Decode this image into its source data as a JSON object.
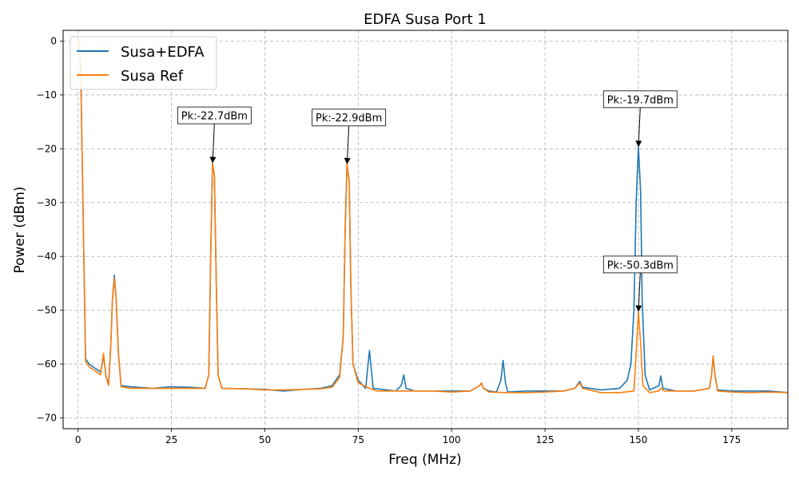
{
  "chart_data": {
    "type": "line",
    "title": "EDFA Susa Port 1",
    "xlabel": "Freq (MHz)",
    "ylabel": "Power (dBm)",
    "xlim": [
      -4,
      190
    ],
    "ylim": [
      -72,
      2
    ],
    "xticks": [
      0,
      25,
      50,
      75,
      100,
      125,
      150,
      175
    ],
    "yticks": [
      0,
      -10,
      -20,
      -30,
      -40,
      -50,
      -60,
      -70
    ],
    "xtick_labels": [
      "0",
      "25",
      "50",
      "75",
      "100",
      "125",
      "150",
      "175"
    ],
    "ytick_labels": [
      "0",
      "−10",
      "−20",
      "−30",
      "−40",
      "−50",
      "−60",
      "−70"
    ],
    "grid": true,
    "legend_position": "top-left",
    "series": [
      {
        "name": "Susa+EDFA",
        "color": "#1f77b4",
        "points": [
          [
            0,
            0.8
          ],
          [
            0.7,
            -5
          ],
          [
            1.3,
            -30
          ],
          [
            2,
            -59
          ],
          [
            3,
            -60
          ],
          [
            4,
            -60.5
          ],
          [
            5,
            -61
          ],
          [
            6,
            -61.5
          ],
          [
            6.8,
            -58.5
          ],
          [
            7.5,
            -62.5
          ],
          [
            8.2,
            -63.5
          ],
          [
            8.8,
            -56
          ],
          [
            9.2,
            -48
          ],
          [
            9.7,
            -43.5
          ],
          [
            10.2,
            -48
          ],
          [
            10.8,
            -58
          ],
          [
            11.5,
            -64
          ],
          [
            14,
            -64.2
          ],
          [
            20,
            -64.5
          ],
          [
            25,
            -64.2
          ],
          [
            30,
            -64.3
          ],
          [
            34,
            -64.5
          ],
          [
            35,
            -62
          ],
          [
            35.5,
            -40
          ],
          [
            36,
            -22.7
          ],
          [
            36.5,
            -25
          ],
          [
            37,
            -45
          ],
          [
            37.5,
            -62
          ],
          [
            38.5,
            -64.5
          ],
          [
            45,
            -64.6
          ],
          [
            50,
            -64.7
          ],
          [
            55,
            -65
          ],
          [
            60,
            -64.7
          ],
          [
            65,
            -64.5
          ],
          [
            68,
            -64
          ],
          [
            70,
            -62
          ],
          [
            71,
            -55
          ],
          [
            71.5,
            -35
          ],
          [
            72,
            -22.9
          ],
          [
            72.6,
            -26
          ],
          [
            73,
            -45
          ],
          [
            73.6,
            -60
          ],
          [
            75,
            -63
          ],
          [
            77,
            -64.5
          ],
          [
            77.5,
            -61
          ],
          [
            78,
            -57.5
          ],
          [
            78.5,
            -61
          ],
          [
            79,
            -64.5
          ],
          [
            85,
            -65
          ],
          [
            86.5,
            -64
          ],
          [
            87.2,
            -62
          ],
          [
            87.8,
            -64.5
          ],
          [
            90,
            -65
          ],
          [
            95,
            -65
          ],
          [
            100,
            -65
          ],
          [
            105,
            -65
          ],
          [
            107.5,
            -64
          ],
          [
            108,
            -63.5
          ],
          [
            108.5,
            -64.5
          ],
          [
            110,
            -65
          ],
          [
            112,
            -65.2
          ],
          [
            113.2,
            -63
          ],
          [
            113.8,
            -59.3
          ],
          [
            114.4,
            -63.5
          ],
          [
            115,
            -65.2
          ],
          [
            120,
            -65
          ],
          [
            125,
            -65
          ],
          [
            130,
            -65
          ],
          [
            133,
            -64.5
          ],
          [
            134.3,
            -63.2
          ],
          [
            135,
            -64.3
          ],
          [
            140,
            -64.8
          ],
          [
            145,
            -64.5
          ],
          [
            147,
            -63
          ],
          [
            148,
            -60
          ],
          [
            148.8,
            -50
          ],
          [
            149.4,
            -30
          ],
          [
            150,
            -19.7
          ],
          [
            150.6,
            -28
          ],
          [
            151,
            -48
          ],
          [
            151.8,
            -62
          ],
          [
            153,
            -64.8
          ],
          [
            155.5,
            -64
          ],
          [
            156,
            -62.2
          ],
          [
            156.6,
            -64.5
          ],
          [
            160,
            -65
          ],
          [
            165,
            -65
          ],
          [
            169,
            -64.5
          ],
          [
            169.6,
            -62
          ],
          [
            170,
            -58.5
          ],
          [
            170.5,
            -62
          ],
          [
            171.2,
            -64.8
          ],
          [
            175,
            -65
          ],
          [
            180,
            -65
          ],
          [
            185,
            -65
          ],
          [
            190,
            -65.3
          ]
        ]
      },
      {
        "name": "Susa Ref",
        "color": "#ff7f0e",
        "points": [
          [
            0,
            0.8
          ],
          [
            0.7,
            -5
          ],
          [
            1.3,
            -30
          ],
          [
            2,
            -59.5
          ],
          [
            3,
            -60.5
          ],
          [
            4,
            -61
          ],
          [
            5,
            -61.5
          ],
          [
            6,
            -62
          ],
          [
            6.8,
            -58
          ],
          [
            7.5,
            -62.5
          ],
          [
            8.2,
            -64
          ],
          [
            8.8,
            -56
          ],
          [
            9.2,
            -48
          ],
          [
            9.7,
            -44
          ],
          [
            10.2,
            -48
          ],
          [
            10.8,
            -58
          ],
          [
            11.5,
            -64.2
          ],
          [
            14,
            -64.5
          ],
          [
            20,
            -64.5
          ],
          [
            25,
            -64.5
          ],
          [
            30,
            -64.5
          ],
          [
            34,
            -64.5
          ],
          [
            35,
            -62
          ],
          [
            35.5,
            -40
          ],
          [
            36,
            -22.7
          ],
          [
            36.5,
            -25
          ],
          [
            37,
            -45
          ],
          [
            37.5,
            -62
          ],
          [
            38.5,
            -64.5
          ],
          [
            45,
            -64.6
          ],
          [
            50,
            -64.8
          ],
          [
            55,
            -64.8
          ],
          [
            60,
            -64.7
          ],
          [
            65,
            -64.6
          ],
          [
            68,
            -64.3
          ],
          [
            70,
            -62.5
          ],
          [
            71,
            -55
          ],
          [
            71.5,
            -35
          ],
          [
            72,
            -22.9
          ],
          [
            72.6,
            -26
          ],
          [
            73,
            -45
          ],
          [
            73.6,
            -60
          ],
          [
            75,
            -63.5
          ],
          [
            78,
            -64.5
          ],
          [
            80,
            -65
          ],
          [
            85,
            -65
          ],
          [
            90,
            -65
          ],
          [
            95,
            -65
          ],
          [
            100,
            -65.2
          ],
          [
            105,
            -65
          ],
          [
            107.5,
            -64
          ],
          [
            108,
            -63.5
          ],
          [
            108.5,
            -64.5
          ],
          [
            110,
            -65.2
          ],
          [
            115,
            -65.3
          ],
          [
            120,
            -65.3
          ],
          [
            125,
            -65.2
          ],
          [
            130,
            -65
          ],
          [
            133,
            -64.5
          ],
          [
            134.3,
            -63.5
          ],
          [
            135,
            -64.5
          ],
          [
            140,
            -65.3
          ],
          [
            145,
            -65.3
          ],
          [
            148.8,
            -65
          ],
          [
            149.4,
            -58
          ],
          [
            150,
            -50.3
          ],
          [
            150.6,
            -56
          ],
          [
            151.2,
            -64
          ],
          [
            153,
            -65.3
          ],
          [
            155.5,
            -65
          ],
          [
            156,
            -64.5
          ],
          [
            157,
            -65
          ],
          [
            160,
            -65
          ],
          [
            165,
            -65
          ],
          [
            169,
            -64.5
          ],
          [
            169.6,
            -62
          ],
          [
            170,
            -58.5
          ],
          [
            170.5,
            -62
          ],
          [
            171.2,
            -65
          ],
          [
            175,
            -65.2
          ],
          [
            180,
            -65.3
          ],
          [
            185,
            -65.2
          ],
          [
            190,
            -65.3
          ]
        ]
      }
    ],
    "annotations": [
      {
        "text": "Pk:-22.7dBm",
        "x": 36,
        "y": -22.7,
        "text_x": 36.5,
        "text_y": -13.8
      },
      {
        "text": "Pk:-22.9dBm",
        "x": 72,
        "y": -22.9,
        "text_x": 72.5,
        "text_y": -14.2
      },
      {
        "text": "Pk:-19.7dBm",
        "x": 150,
        "y": -19.7,
        "text_x": 150.5,
        "text_y": -10.8
      },
      {
        "text": "Pk:-50.3dBm",
        "x": 150,
        "y": -50.3,
        "text_x": 150.5,
        "text_y": -41.5
      }
    ]
  }
}
